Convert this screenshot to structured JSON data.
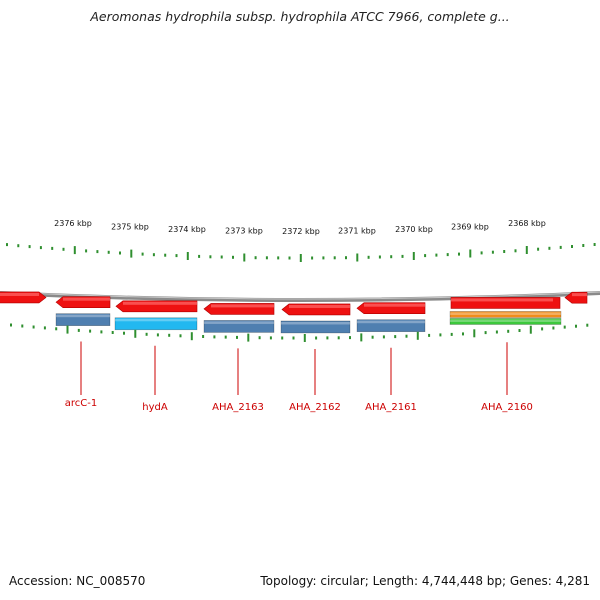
{
  "title": "Aeromonas hydrophila subsp. hydrophila ATCC 7966, complete g...",
  "footer": {
    "accession": "Accession: NC_008570",
    "summary": "Topology: circular; Length: 4,744,448 bp; Genes: 4,281"
  },
  "colors": {
    "forward_gene": "#ee1111",
    "cds_default": "#4f7fb0",
    "cds_hydA": "#22b8f0",
    "feature_orange": "#f08c1c",
    "feature_green": "#3cc83c",
    "label_red": "#cc0000",
    "tick_green": "#2f8f2f",
    "backbone": "#8a8a8a"
  },
  "kbp_labels": [
    "2376 kbp",
    "2375 kbp",
    "2374 kbp",
    "2373 kbp",
    "2372 kbp",
    "2371 kbp",
    "2370 kbp",
    "2369 kbp",
    "2368 kbp"
  ],
  "genes": [
    "arcC-1",
    "hydA",
    "AHA_2163",
    "AHA_2162",
    "AHA_2161",
    "AHA_2160"
  ]
}
